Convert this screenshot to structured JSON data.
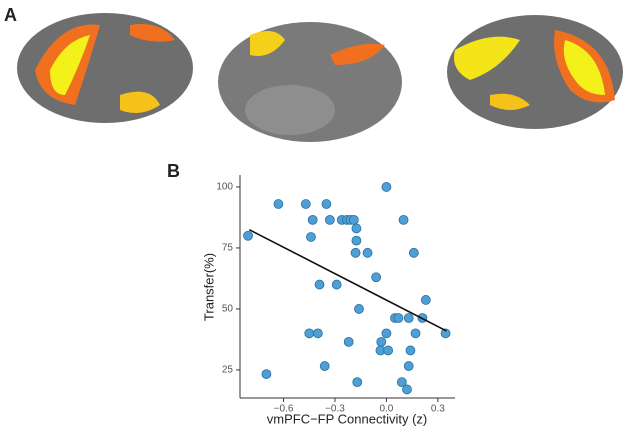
{
  "panel_labels": [
    "A",
    "B"
  ],
  "chart_data": {
    "type": "scatter",
    "x_label": "vmPFC−FP Connectivity (z)",
    "y_label": "Transfer(%)",
    "color": "#4d9fd6",
    "x": [
      -0.807,
      -0.63,
      -0.47,
      -0.43,
      -0.35,
      -0.33,
      -0.26,
      -0.23,
      -0.21,
      -0.19,
      -0.175,
      -0.175,
      -0.44,
      -0.18,
      -0.11,
      0,
      0.1,
      0.16,
      -0.06,
      -0.39,
      -0.29,
      0.23,
      -0.16,
      0.05,
      0.07,
      0.13,
      0.21,
      0.345,
      -0.45,
      -0.4,
      0,
      0.17,
      -0.22,
      -0.03,
      -0.035,
      0.01,
      0.14,
      -0.36,
      0.13,
      -0.7,
      -0.17,
      0.09,
      0.12
    ],
    "values": [
      80,
      93,
      93,
      86.5,
      93,
      86.5,
      86.5,
      86.5,
      86.5,
      86.5,
      83,
      78,
      79.5,
      73,
      73,
      100,
      86.5,
      73,
      63,
      60,
      60,
      53.7,
      50,
      46.3,
      46.3,
      46.3,
      46.3,
      40,
      40,
      40,
      40,
      40,
      36.5,
      36.5,
      33,
      33,
      33,
      26.6,
      26.6,
      23.3,
      20,
      20,
      17
    ],
    "fit": {
      "x": [
        -0.8,
        0.35
      ],
      "values": [
        82.5,
        41
      ]
    },
    "xlim": [
      -0.854,
      0.4
    ],
    "ylim": [
      13.5,
      104.9
    ],
    "xticks": [
      {
        "value": -0.6,
        "label": "−0.6"
      },
      {
        "value": -0.3,
        "label": "−0.3"
      },
      {
        "value": 0,
        "label": "0.0"
      },
      0.3
    ],
    "yticks": [
      25,
      50,
      75,
      100
    ]
  }
}
